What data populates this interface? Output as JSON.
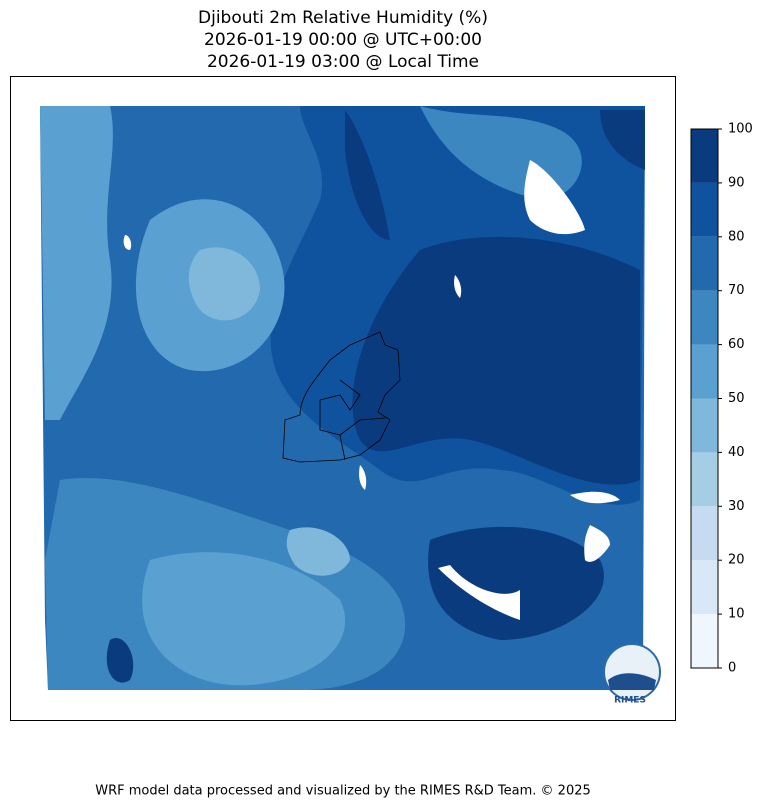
{
  "header": {
    "title_lines": [
      "Djibouti 2m Relative Humidity (%)",
      "2026-01-19 00:00 @ UTC+00:00",
      "2026-01-19 03:00 @ Local Time"
    ]
  },
  "colorbar": {
    "bounds": [
      0,
      10,
      20,
      30,
      40,
      50,
      60,
      70,
      80,
      90,
      100
    ],
    "colors": [
      "#f0f6fd",
      "#d9e8f6",
      "#c6dbef",
      "#a5cde3",
      "#7fb8da",
      "#5aa0d0",
      "#3d87c0",
      "#2369ad",
      "#0f539f",
      "#0a3b7e"
    ],
    "ticks": [
      0,
      10,
      20,
      30,
      40,
      50,
      60,
      70,
      80,
      90,
      100
    ]
  },
  "logo": {
    "text": "RIMES"
  },
  "footer": {
    "text": "WRF model data processed and visualized by the RIMES R&D Team. © 2025"
  }
}
